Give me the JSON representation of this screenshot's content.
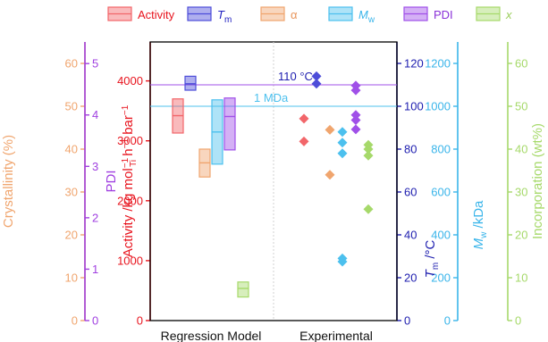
{
  "chart_data": {
    "type": "scatter",
    "categories": [
      "Regression Model",
      "Experimental"
    ],
    "legend": {
      "placement": "top",
      "entries": [
        {
          "key": "activity",
          "label": "Activity",
          "color": "#f2666a"
        },
        {
          "key": "tm",
          "label": "T",
          "sub": "m",
          "color": "#4d4dd9"
        },
        {
          "key": "alpha",
          "label": "α",
          "color": "#f0a56e"
        },
        {
          "key": "mw",
          "label": "M",
          "sub": "w",
          "color": "#4cc0ee"
        },
        {
          "key": "pdi",
          "label": "PDI",
          "color": "#a050e8"
        },
        {
          "key": "x",
          "label": "x",
          "color": "#a6d96a"
        }
      ]
    },
    "axes": {
      "crystallinity": {
        "label": "Crystallinity (%)",
        "min": 0,
        "max": 65,
        "ticks": [
          0,
          10,
          20,
          30,
          40,
          50,
          60
        ],
        "color": "#f0a56e"
      },
      "pdi": {
        "label": "PDI",
        "min": 0,
        "max": 5.42,
        "ticks": [
          0,
          1,
          2,
          3,
          4,
          5
        ],
        "color": "#a040e0"
      },
      "activity": {
        "label_main": "Activity /kg mol",
        "label_sup": "−1",
        "label_sub": "Ti",
        "label_rest": " h",
        "label_rest_sup": "−1",
        "label_tail": " bar",
        "label_tail_sup": "−1",
        "min": 0,
        "max": 4650,
        "ticks": [
          0,
          1000,
          2000,
          3000,
          4000
        ],
        "color": "#e8141e"
      },
      "tm": {
        "label_main": "T",
        "label_sub": "m",
        "label_rest": " /°C",
        "min": 0,
        "max": 130,
        "ticks": [
          0,
          20,
          40,
          60,
          80,
          100,
          120
        ],
        "color": "#2020b0"
      },
      "mw": {
        "label_main": "M",
        "label_sub": "w",
        "label_rest": " /kDa",
        "min": 0,
        "max": 1300,
        "ticks": [
          0,
          200,
          400,
          600,
          800,
          1000,
          1200
        ],
        "color": "#3ab5ea"
      },
      "incorporation": {
        "label": "Incorporation (wt%)",
        "min": 0,
        "max": 65,
        "ticks": [
          0,
          10,
          20,
          30,
          40,
          50,
          60
        ],
        "color": "#a6d96a"
      }
    },
    "reference_lines": [
      {
        "label": "110 °C",
        "axis": "tm",
        "value": 110,
        "color": "#a050e8"
      },
      {
        "label": "1 MDa",
        "axis": "mw",
        "value": 1000,
        "color": "#4cc0ee"
      }
    ],
    "regression_model": [
      {
        "key": "activity",
        "axis": "activity",
        "low": 3130,
        "mid": 3420,
        "high": 3700
      },
      {
        "key": "tm",
        "axis": "tm",
        "low": 107.5,
        "mid": 110.5,
        "high": 114
      },
      {
        "key": "alpha",
        "axis": "crystallinity",
        "low": 33.5,
        "mid": 36.8,
        "high": 40
      },
      {
        "key": "mw",
        "axis": "mw",
        "low": 730,
        "mid": 880,
        "high": 1030
      },
      {
        "key": "pdi",
        "axis": "pdi",
        "low": 3.32,
        "mid": 3.97,
        "high": 4.33
      },
      {
        "key": "x",
        "axis": "incorporation",
        "low": 5.5,
        "mid": 7.5,
        "high": 9
      }
    ],
    "experimental": [
      {
        "key": "activity",
        "axis": "activity",
        "values": [
          3370,
          2990
        ]
      },
      {
        "key": "tm",
        "axis": "tm",
        "values": [
          114,
          110.5
        ]
      },
      {
        "key": "alpha",
        "axis": "crystallinity",
        "values": [
          44.5,
          34
        ]
      },
      {
        "key": "mw",
        "axis": "mw",
        "values": [
          880,
          830,
          780,
          290,
          275
        ]
      },
      {
        "key": "pdi",
        "axis": "pdi",
        "values": [
          4.57,
          4.48,
          4.0,
          3.9,
          3.72
        ]
      },
      {
        "key": "x",
        "axis": "incorporation",
        "values": [
          41,
          40,
          38.5,
          26
        ]
      }
    ]
  }
}
